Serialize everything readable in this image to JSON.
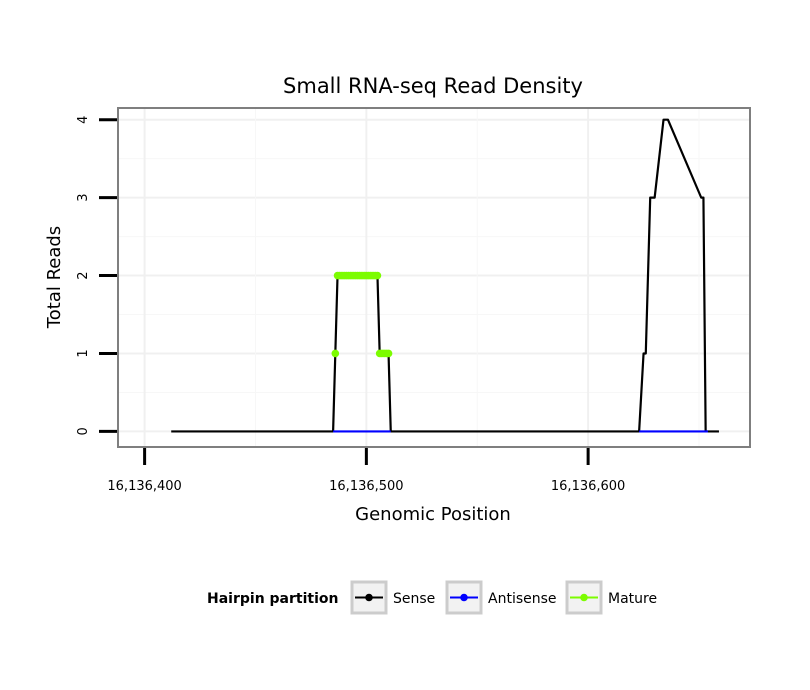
{
  "chart_data": {
    "type": "line",
    "title": "Small RNA-seq Read Density",
    "xlabel": "Genomic Position",
    "ylabel": "Total Reads",
    "xlim": [
      16136388,
      16136673
    ],
    "ylim": [
      -0.2,
      4.15
    ],
    "x_ticks": [
      16136400,
      16136500,
      16136600
    ],
    "x_tick_labels": [
      "16,136,400",
      "16,136,500",
      "16,136,600"
    ],
    "y_ticks": [
      0,
      1,
      2,
      3,
      4
    ],
    "y_tick_labels": [
      "0",
      "1",
      "2",
      "3",
      "4"
    ],
    "grid": true,
    "legend": {
      "title": "Hairpin partition",
      "position": "bottom",
      "entries": [
        "Sense",
        "Antisense",
        "Mature"
      ]
    },
    "series": [
      {
        "name": "Sense",
        "color": "#000000",
        "x": [
          16136412,
          16136485,
          16136486,
          16136487,
          16136505,
          16136506,
          16136510,
          16136511,
          16136623,
          16136625,
          16136626,
          16136628,
          16136630,
          16136634,
          16136636,
          16136651,
          16136652,
          16136653,
          16136654,
          16136659
        ],
        "y": [
          0,
          0,
          1,
          2,
          2,
          1,
          1,
          0,
          0,
          1,
          1,
          3,
          3,
          4,
          4,
          3,
          3,
          0,
          0,
          0
        ]
      },
      {
        "name": "Antisense",
        "color": "#0000ff",
        "x": [
          16136485,
          16136511,
          16136623,
          16136654
        ],
        "y": [
          0,
          0,
          0,
          0
        ],
        "segments": [
          [
            0,
            1
          ],
          [
            2,
            3
          ]
        ]
      },
      {
        "name": "Mature",
        "color": "#7cfc00",
        "points": [
          {
            "x": 16136486,
            "y": 1
          },
          {
            "x": 16136487,
            "y": 2
          },
          {
            "x": 16136488,
            "y": 2
          },
          {
            "x": 16136489,
            "y": 2
          },
          {
            "x": 16136490,
            "y": 2
          },
          {
            "x": 16136491,
            "y": 2
          },
          {
            "x": 16136492,
            "y": 2
          },
          {
            "x": 16136493,
            "y": 2
          },
          {
            "x": 16136494,
            "y": 2
          },
          {
            "x": 16136495,
            "y": 2
          },
          {
            "x": 16136496,
            "y": 2
          },
          {
            "x": 16136497,
            "y": 2
          },
          {
            "x": 16136498,
            "y": 2
          },
          {
            "x": 16136499,
            "y": 2
          },
          {
            "x": 16136500,
            "y": 2
          },
          {
            "x": 16136501,
            "y": 2
          },
          {
            "x": 16136502,
            "y": 2
          },
          {
            "x": 16136503,
            "y": 2
          },
          {
            "x": 16136504,
            "y": 2
          },
          {
            "x": 16136505,
            "y": 2
          },
          {
            "x": 16136506,
            "y": 1
          },
          {
            "x": 16136507,
            "y": 1
          },
          {
            "x": 16136508,
            "y": 1
          },
          {
            "x": 16136509,
            "y": 1
          },
          {
            "x": 16136510,
            "y": 1
          }
        ]
      }
    ]
  }
}
